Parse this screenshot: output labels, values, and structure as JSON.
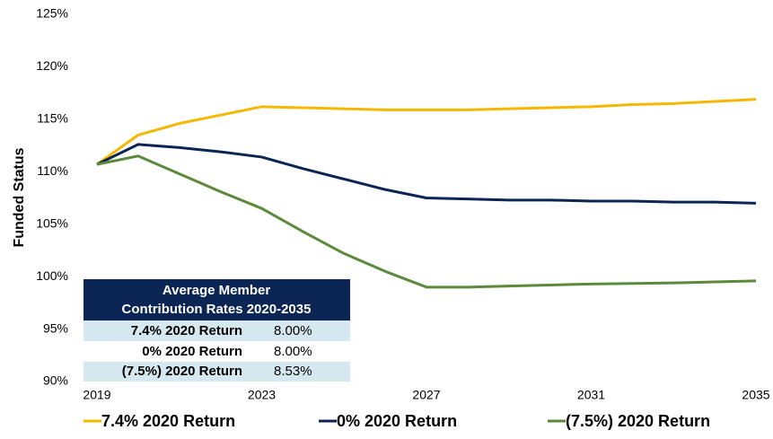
{
  "chart_data": {
    "type": "line",
    "y_label": "Funded Status",
    "x": [
      2019,
      2020,
      2021,
      2022,
      2023,
      2024,
      2025,
      2026,
      2027,
      2028,
      2029,
      2030,
      2031,
      2032,
      2033,
      2034,
      2035
    ],
    "series": [
      {
        "name": "7.4% 2020 Return",
        "color": "#f5b800",
        "values": [
          110.7,
          113.5,
          114.6,
          115.4,
          116.2,
          116.1,
          116.0,
          115.9,
          115.9,
          115.9,
          116.0,
          116.1,
          116.2,
          116.4,
          116.5,
          116.7,
          116.9
        ]
      },
      {
        "name": "0% 2020 Return",
        "color": "#0b2554",
        "values": [
          110.7,
          112.6,
          112.3,
          111.9,
          111.4,
          110.3,
          109.3,
          108.3,
          107.5,
          107.4,
          107.3,
          107.3,
          107.2,
          107.2,
          107.1,
          107.1,
          107.0
        ]
      },
      {
        "name": "(7.5%) 2020 Return",
        "color": "#5a8a3a",
        "values": [
          110.7,
          111.5,
          109.8,
          108.1,
          106.5,
          104.3,
          102.2,
          100.5,
          99.0,
          99.0,
          99.1,
          99.2,
          99.3,
          99.35,
          99.4,
          99.5,
          99.6
        ]
      }
    ],
    "xlim": [
      2019,
      2035
    ],
    "xticks": [
      2019,
      2023,
      2027,
      2031,
      2035
    ],
    "ylim": [
      90,
      125
    ],
    "yticks": [
      {
        "value": 90,
        "label": "90%"
      },
      {
        "value": 95,
        "label": "95%"
      },
      {
        "value": 100,
        "label": "100%"
      },
      {
        "value": 105,
        "label": "105%"
      },
      {
        "value": 110,
        "label": "110%"
      },
      {
        "value": 115,
        "label": "115%"
      },
      {
        "value": 120,
        "label": "120%"
      },
      {
        "value": 125,
        "label": "125%"
      }
    ],
    "grid": false,
    "legend": "bottom"
  },
  "table": {
    "header": [
      "Average Member",
      "Contribution Rates 2020-2035"
    ],
    "rows": [
      [
        "7.4%  2020 Return",
        "8.00%"
      ],
      [
        "0%  2020 Return",
        "8.00%"
      ],
      [
        "(7.5%) 2020 Return",
        "8.53%"
      ]
    ]
  }
}
